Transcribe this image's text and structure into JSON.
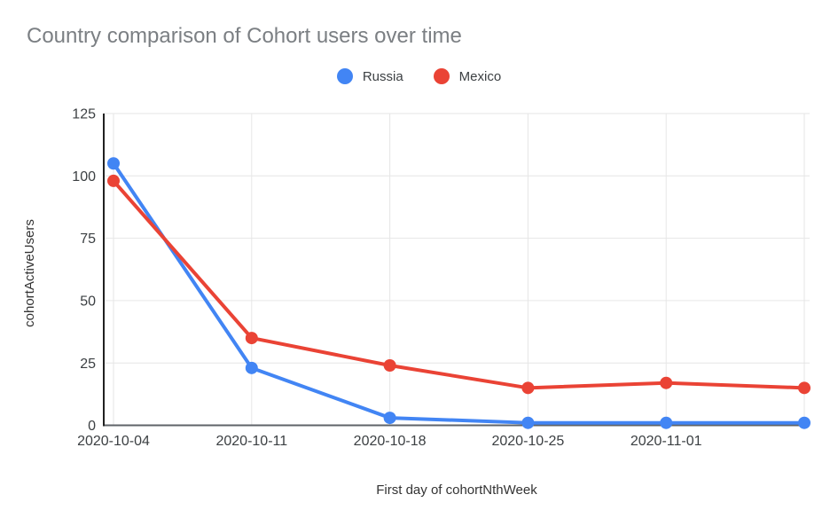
{
  "chart_data": {
    "type": "line",
    "title": "Country comparison of Cohort users over time",
    "xlabel": "First day of cohortNthWeek",
    "ylabel": "cohortActiveUsers",
    "x_tick_labels": [
      "2020-10-04",
      "2020-10-11",
      "2020-10-18",
      "2020-10-25",
      "2020-11-01",
      ""
    ],
    "y_ticks": [
      0,
      25,
      50,
      75,
      100,
      125
    ],
    "ylim": [
      0,
      125
    ],
    "grid": true,
    "legend_position": "top-center",
    "series": [
      {
        "name": "Russia",
        "color": "#4285F4",
        "values": [
          105,
          23,
          3,
          1,
          1,
          1
        ]
      },
      {
        "name": "Mexico",
        "color": "#EA4335",
        "values": [
          98,
          35,
          24,
          15,
          17,
          15
        ]
      }
    ]
  },
  "colors": {
    "title_text": "#7b7f83",
    "tick_text": "#3c4043",
    "gridline": "#e6e6e6",
    "y_axis_line": "#212121",
    "x_axis_line": "#5f6368",
    "background": "#ffffff"
  }
}
